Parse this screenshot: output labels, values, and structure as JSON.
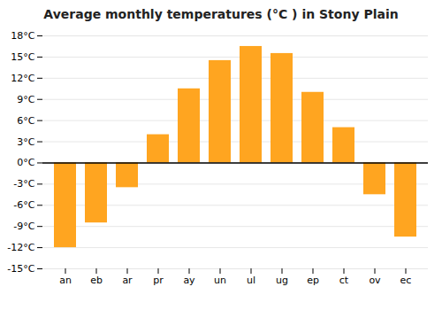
{
  "chart_data": {
    "type": "bar",
    "title": "Average monthly temperatures (°C ) in Stony Plain",
    "categories": [
      "an",
      "eb",
      "ar",
      "pr",
      "ay",
      "un",
      "ul",
      "ug",
      "ep",
      "ct",
      "ov",
      "ec"
    ],
    "values": [
      -12,
      -8.5,
      -3.5,
      4,
      10.5,
      14.5,
      16.5,
      15.5,
      10,
      5,
      -4.5,
      -10.5
    ],
    "color": "#FFA520",
    "ylim": [
      -15,
      18
    ],
    "yticks": [
      {
        "value": -15,
        "label": "-15°C"
      },
      {
        "value": -12,
        "label": "-12°C"
      },
      {
        "value": -9,
        "label": "-9°C"
      },
      {
        "value": -6,
        "label": "-6°C"
      },
      {
        "value": -3,
        "label": "-3°C"
      },
      {
        "value": 0,
        "label": "0°C"
      },
      {
        "value": 3,
        "label": "3°C"
      },
      {
        "value": 6,
        "label": "6°C"
      },
      {
        "value": 9,
        "label": "9°C"
      },
      {
        "value": 12,
        "label": "12°C"
      },
      {
        "value": 15,
        "label": "15°C"
      },
      {
        "value": 18,
        "label": "18°C"
      }
    ],
    "grid": true
  }
}
